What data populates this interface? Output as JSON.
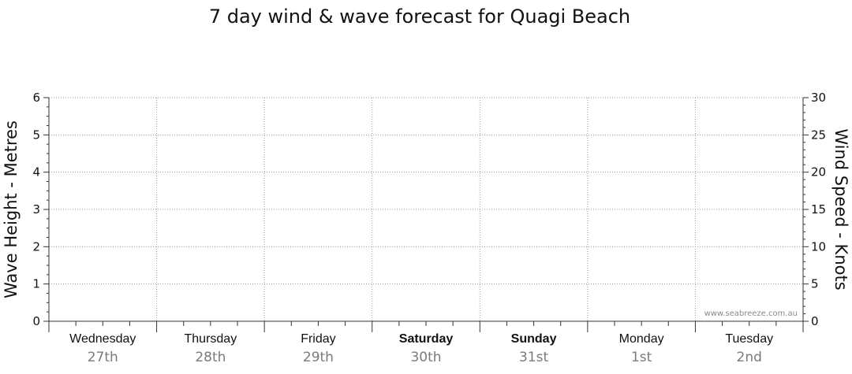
{
  "chart_data": {
    "type": "line",
    "title": "7 day wind & wave forecast for Quagi Beach",
    "y_left": {
      "label": "Wave Height - Metres",
      "range": [
        0,
        6
      ],
      "ticks": [
        0,
        1,
        2,
        3,
        4,
        5,
        6
      ]
    },
    "y_right": {
      "label": "Wind Speed - Knots",
      "range": [
        0,
        30
      ],
      "ticks": [
        0,
        5,
        10,
        15,
        20,
        25,
        30
      ]
    },
    "days": [
      {
        "name": "Wednesday",
        "date": "27th",
        "bold": false
      },
      {
        "name": "Thursday",
        "date": "28th",
        "bold": false
      },
      {
        "name": "Friday",
        "date": "29th",
        "bold": false
      },
      {
        "name": "Saturday",
        "date": "30th",
        "bold": true
      },
      {
        "name": "Sunday",
        "date": "31st",
        "bold": true
      },
      {
        "name": "Monday",
        "date": "1st",
        "bold": false
      },
      {
        "name": "Tuesday",
        "date": "2nd",
        "bold": false
      }
    ],
    "grid": true,
    "series": [],
    "watermark": "www.seabreeze.com.au"
  }
}
